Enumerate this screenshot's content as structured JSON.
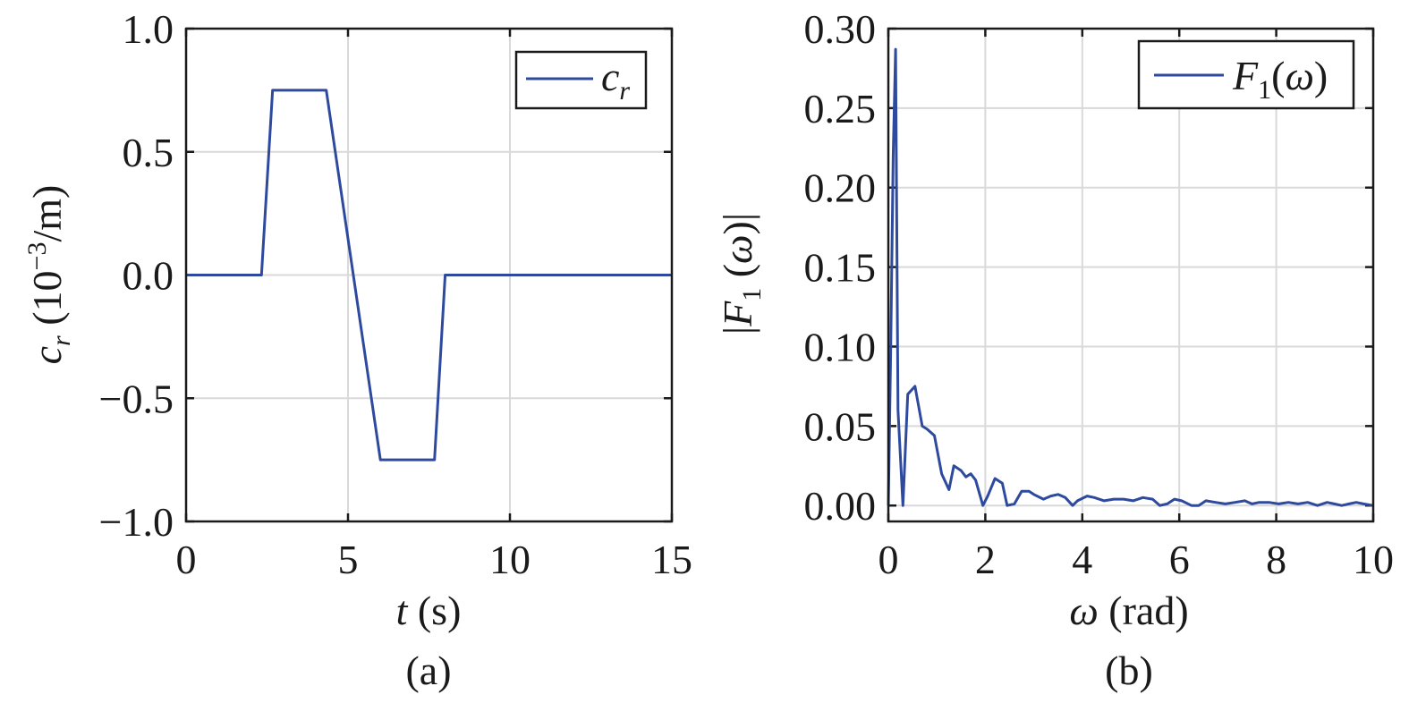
{
  "colors": {
    "series": "#2e4a9e"
  },
  "chart_data": [
    {
      "id": "a",
      "type": "line",
      "panel_label": "(a)",
      "xlabel": {
        "var": "t",
        "unit": " (s)"
      },
      "ylabel": {
        "var": "c",
        "sub": "r",
        "unit_pre": " (10",
        "unit_sup": "−3",
        "unit_post": "/m)"
      },
      "xlim": [
        0,
        15
      ],
      "ylim": [
        -1.0,
        1.0
      ],
      "xticks": [
        0,
        5,
        10,
        15
      ],
      "xtick_labels": [
        "0",
        "5",
        "10",
        "15"
      ],
      "yticks": [
        -1.0,
        -0.5,
        0.0,
        0.5,
        1.0
      ],
      "ytick_labels": [
        "−1.0",
        "−0.5",
        "0.0",
        "0.5",
        "1.0"
      ],
      "grid": true,
      "legend_position": "top-right",
      "series": [
        {
          "name": {
            "var": "c",
            "sub": "r"
          },
          "x": [
            0,
            2.33,
            2.67,
            4.33,
            6.0,
            7.67,
            8.0,
            15
          ],
          "y": [
            0,
            0,
            0.75,
            0.75,
            -0.75,
            -0.75,
            0,
            0
          ]
        }
      ]
    },
    {
      "id": "b",
      "type": "line",
      "panel_label": "(b)",
      "xlabel": {
        "var": "ω",
        "unit": " (rad)"
      },
      "ylabel": {
        "pre": "|",
        "var": "F",
        "sub": "1",
        "post": " (",
        "arg": "ω",
        "close": ")|"
      },
      "xlim": [
        0,
        10
      ],
      "ylim": [
        -0.01,
        0.3
      ],
      "xticks": [
        0,
        2,
        4,
        6,
        8,
        10
      ],
      "xtick_labels": [
        "0",
        "2",
        "4",
        "6",
        "8",
        "10"
      ],
      "yticks": [
        0.0,
        0.05,
        0.1,
        0.15,
        0.2,
        0.25,
        0.3
      ],
      "ytick_labels": [
        "0.00",
        "0.05",
        "0.10",
        "0.15",
        "0.20",
        "0.25",
        "0.30"
      ],
      "grid": true,
      "legend_position": "top-right",
      "series": [
        {
          "name": {
            "var": "F",
            "sub": "1",
            "post": "(",
            "arg": "ω",
            "close": ")"
          },
          "x": [
            0,
            0.05,
            0.1,
            0.15,
            0.2,
            0.3,
            0.4,
            0.55,
            0.7,
            0.8,
            0.95,
            1.1,
            1.25,
            1.35,
            1.5,
            1.6,
            1.7,
            1.8,
            1.95,
            2.05,
            2.2,
            2.35,
            2.45,
            2.6,
            2.75,
            2.9,
            3.0,
            3.2,
            3.35,
            3.5,
            3.65,
            3.8,
            3.9,
            4.1,
            4.25,
            4.45,
            4.65,
            4.85,
            5.05,
            5.25,
            5.45,
            5.6,
            5.75,
            5.9,
            6.05,
            6.25,
            6.4,
            6.55,
            6.75,
            6.95,
            7.15,
            7.35,
            7.5,
            7.65,
            7.85,
            8.05,
            8.25,
            8.45,
            8.65,
            8.85,
            9.05,
            9.2,
            9.35,
            9.5,
            9.65,
            9.8,
            10.0
          ],
          "y": [
            0.0,
            0.1,
            0.22,
            0.287,
            0.06,
            0.0,
            0.07,
            0.075,
            0.05,
            0.048,
            0.044,
            0.02,
            0.01,
            0.025,
            0.022,
            0.018,
            0.02,
            0.016,
            0.0,
            0.006,
            0.017,
            0.014,
            0.0,
            0.001,
            0.009,
            0.009,
            0.007,
            0.004,
            0.006,
            0.007,
            0.005,
            0.0,
            0.003,
            0.006,
            0.005,
            0.003,
            0.004,
            0.004,
            0.003,
            0.005,
            0.004,
            0.0,
            0.001,
            0.004,
            0.003,
            0.0,
            0.0,
            0.003,
            0.002,
            0.001,
            0.002,
            0.003,
            0.001,
            0.002,
            0.002,
            0.001,
            0.002,
            0.001,
            0.002,
            0.0,
            0.002,
            0.001,
            0.0,
            0.001,
            0.002,
            0.001,
            0.0
          ]
        }
      ]
    }
  ]
}
